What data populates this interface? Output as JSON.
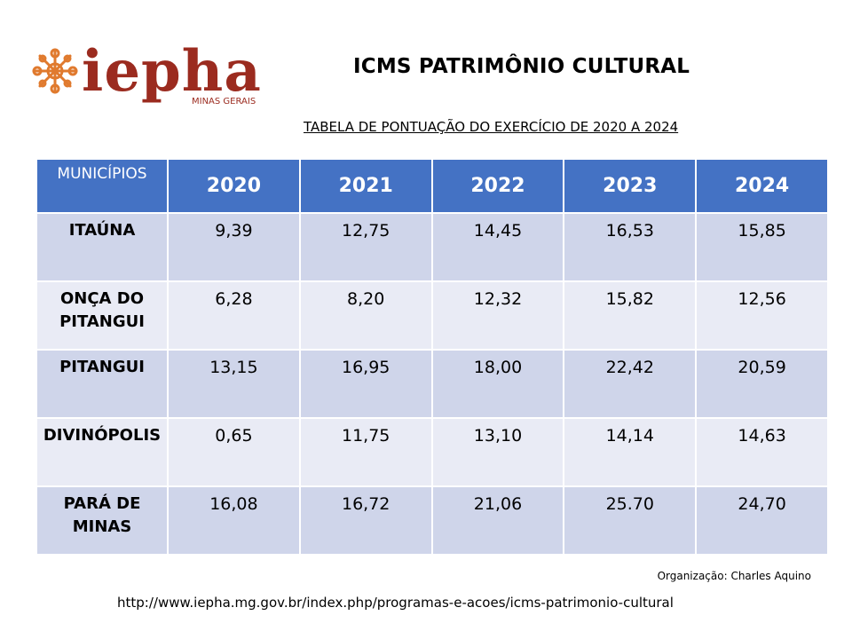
{
  "logo": {
    "wordmark": "iepha",
    "tagline": "MINAS GERAIS",
    "brand_color": "#9b2b1f",
    "ornament_color": "#e07a2e"
  },
  "title": "ICMS PATRIMÔNIO CULTURAL",
  "subtitle": "TABELA  DE  PONTUAÇÃO  DO  EXERCÍCIO  DE  2020  A  2024",
  "table": {
    "header_color": "#4472c4",
    "row_colors": [
      "#cfd5ea",
      "#e9ebf5"
    ],
    "columns": [
      "MUNICÍPIOS",
      "2020",
      "2021",
      "2022",
      "2023",
      "2024"
    ],
    "rows": [
      {
        "name": "ITAÚNA",
        "values": [
          "9,39",
          "12,75",
          "14,45",
          "16,53",
          "15,85"
        ]
      },
      {
        "name": "ONÇA DO PITANGUI",
        "values": [
          "6,28",
          "8,20",
          "12,32",
          "15,82",
          "12,56"
        ]
      },
      {
        "name": "PITANGUI",
        "values": [
          "13,15",
          "16,95",
          "18,00",
          "22,42",
          "20,59"
        ]
      },
      {
        "name": "DIVINÓPOLIS",
        "values": [
          "0,65",
          "11,75",
          "13,10",
          "14,14",
          "14,63"
        ]
      },
      {
        "name": "PARÁ DE MINAS",
        "values": [
          "16,08",
          "16,72",
          "21,06",
          "25.70",
          "24,70"
        ]
      }
    ]
  },
  "organization": "Organização: Charles Aquino",
  "url": "http://www.iepha.mg.gov.br/index.php/programas-e-acoes/icms-patrimonio-cultural"
}
